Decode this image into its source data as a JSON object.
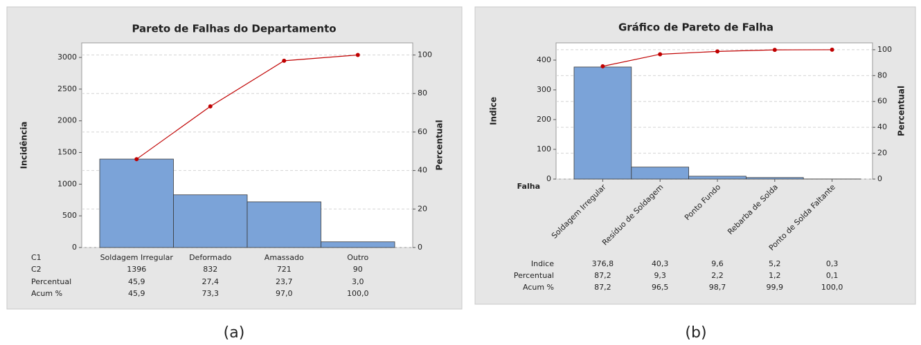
{
  "chart_data": [
    {
      "type": "pareto",
      "title": "Pareto de Falhas do Departamento",
      "ylabel": "Incidência",
      "y2label": "Percentual",
      "category_label": "C1",
      "x_label_style": "table",
      "categories": [
        "Soldagem Irregular",
        "Deformado",
        "Amassado",
        "Outro"
      ],
      "series": [
        {
          "name": "C2",
          "color": "#7ba3d8",
          "values": [
            1396,
            832,
            721,
            90
          ]
        },
        {
          "name": "Percentual",
          "values": [
            45.9,
            27.4,
            23.7,
            3.0
          ],
          "value_labels": [
            "45,9",
            "27,4",
            "23,7",
            "3,0"
          ]
        },
        {
          "name": "Acum %",
          "color": "#c00000",
          "axis": "y2",
          "values": [
            45.9,
            73.3,
            97.0,
            100.0
          ],
          "value_labels": [
            "45,9",
            "73,3",
            "97,0",
            "100,0"
          ]
        }
      ],
      "ylim": [
        0,
        3230
      ],
      "yticks": [
        0,
        500,
        1000,
        1500,
        2000,
        2500,
        3000
      ],
      "y2lim": [
        0,
        106.3
      ],
      "y2ticks": [
        0,
        20,
        40,
        60,
        80,
        100
      ],
      "grid": "y2"
    },
    {
      "type": "pareto",
      "title": "Gráfico de Pareto de Falha",
      "ylabel": "Indice",
      "y2label": "Percentual",
      "category_label": "Falha",
      "x_label_style": "rotated",
      "categories": [
        "Soldagem Irregular",
        "Resíduo de Soldagem",
        "Ponto Fundo",
        "Rebarba de Solda",
        "Ponto de Solda Faltante"
      ],
      "series": [
        {
          "name": "Indice",
          "color": "#7ba3d8",
          "values": [
            376.8,
            40.3,
            9.6,
            5.2,
            0.3
          ],
          "value_labels": [
            "376,8",
            "40,3",
            "9,6",
            "5,2",
            "0,3"
          ]
        },
        {
          "name": "Percentual",
          "values": [
            87.2,
            9.3,
            2.2,
            1.2,
            0.1
          ],
          "value_labels": [
            "87,2",
            "9,3",
            "2,2",
            "1,2",
            "0,1"
          ]
        },
        {
          "name": "Acum %",
          "color": "#c00000",
          "axis": "y2",
          "values": [
            87.2,
            96.5,
            98.7,
            99.9,
            100.0
          ],
          "value_labels": [
            "87,2",
            "96,5",
            "98,7",
            "99,9",
            "100,0"
          ]
        }
      ],
      "ylim": [
        0,
        458
      ],
      "yticks": [
        0,
        100,
        200,
        300,
        400
      ],
      "y2lim": [
        0,
        105.3
      ],
      "y2ticks": [
        0,
        20,
        40,
        60,
        80,
        100
      ],
      "grid": "y2"
    }
  ]
}
